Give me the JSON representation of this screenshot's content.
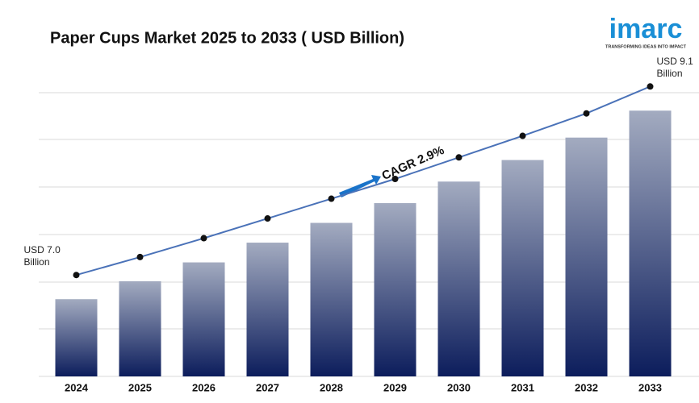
{
  "chart_data": {
    "type": "bar",
    "title": "Paper Cups Market 2025 to 2033 ( USD Billion)",
    "categories": [
      "2024",
      "2025",
      "2026",
      "2027",
      "2028",
      "2029",
      "2030",
      "2031",
      "2032",
      "2033"
    ],
    "values": [
      7.0,
      7.2,
      7.41,
      7.63,
      7.85,
      8.07,
      8.31,
      8.55,
      8.8,
      9.1
    ],
    "value_labels": [
      "USD 7.0 Billion",
      null,
      null,
      null,
      null,
      null,
      null,
      null,
      null,
      "USD 9.1 Billion"
    ],
    "ylim": [
      6.14,
      9.3
    ],
    "annotation": "CAGR 2.9%",
    "color": "#0c1d5c",
    "line_color": "#4a72b8"
  },
  "logo": {
    "name": "imarc",
    "tagline": "TRANSFORMING IDEAS INTO IMPACT"
  }
}
